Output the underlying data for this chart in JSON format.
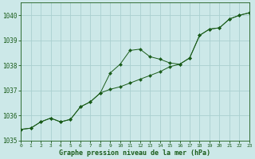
{
  "xlabel": "Graphe pression niveau de la mer (hPa)",
  "ylim": [
    1035,
    1040.5
  ],
  "xlim": [
    0,
    23
  ],
  "yticks": [
    1035,
    1036,
    1037,
    1038,
    1039,
    1040
  ],
  "xticks": [
    0,
    1,
    2,
    3,
    4,
    5,
    6,
    7,
    8,
    9,
    10,
    11,
    12,
    13,
    14,
    15,
    16,
    17,
    18,
    19,
    20,
    21,
    22,
    23
  ],
  "bg_color": "#cce8e8",
  "grid_color": "#aad0d0",
  "line_color": "#1a5c1a",
  "series_upper": [
    [
      0,
      1035.45
    ],
    [
      1,
      1035.5
    ],
    [
      2,
      1035.75
    ],
    [
      3,
      1035.9
    ],
    [
      4,
      1035.75
    ],
    [
      5,
      1035.85
    ],
    [
      6,
      1036.35
    ],
    [
      7,
      1036.55
    ],
    [
      8,
      1036.9
    ],
    [
      9,
      1037.7
    ],
    [
      10,
      1038.05
    ],
    [
      11,
      1038.6
    ],
    [
      12,
      1038.65
    ],
    [
      13,
      1038.35
    ],
    [
      14,
      1038.25
    ],
    [
      15,
      1038.1
    ],
    [
      16,
      1038.05
    ],
    [
      17,
      1038.3
    ],
    [
      18,
      1039.2
    ],
    [
      19,
      1039.45
    ],
    [
      20,
      1039.5
    ],
    [
      21,
      1039.85
    ],
    [
      22,
      1040.0
    ],
    [
      23,
      1040.1
    ]
  ],
  "series_lower": [
    [
      0,
      1035.45
    ],
    [
      1,
      1035.5
    ],
    [
      2,
      1035.75
    ],
    [
      3,
      1035.9
    ],
    [
      4,
      1035.75
    ],
    [
      5,
      1035.85
    ],
    [
      6,
      1036.35
    ],
    [
      7,
      1036.55
    ],
    [
      8,
      1036.9
    ],
    [
      9,
      1037.05
    ],
    [
      10,
      1037.15
    ],
    [
      11,
      1037.3
    ],
    [
      12,
      1037.45
    ],
    [
      13,
      1037.6
    ],
    [
      14,
      1037.75
    ],
    [
      15,
      1037.95
    ],
    [
      16,
      1038.05
    ],
    [
      17,
      1038.3
    ],
    [
      18,
      1039.2
    ],
    [
      19,
      1039.45
    ],
    [
      20,
      1039.5
    ],
    [
      21,
      1039.85
    ],
    [
      22,
      1040.0
    ],
    [
      23,
      1040.1
    ]
  ]
}
